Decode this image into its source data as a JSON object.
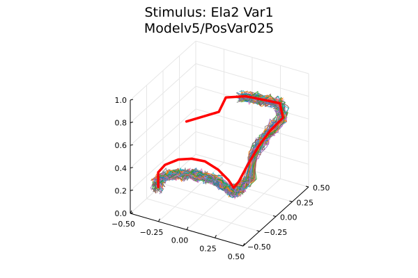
{
  "chart_data": {
    "type": "line",
    "projection": "3d",
    "title_lines": [
      "Stimulus: Ela2 Var1",
      "Modelv5/PosVar025"
    ],
    "xlabel": "",
    "ylabel": "",
    "zlabel": "",
    "xlim": [
      -0.5,
      0.5
    ],
    "ylim": [
      -0.5,
      0.5
    ],
    "zlim": [
      0.0,
      1.0
    ],
    "x_ticks": [
      "−0.50",
      "−0.25",
      "0.00",
      "0.25",
      "0.50"
    ],
    "y_ticks": [
      "−0.50",
      "−0.25",
      "0.00",
      "0.25",
      "0.50"
    ],
    "z_ticks": [
      "0.0",
      "0.2",
      "0.4",
      "0.6",
      "0.8",
      "1.0"
    ],
    "grid": true,
    "legend": "none",
    "colors": {
      "stimulus": "#ff0000",
      "trials": [
        "#1f77b4",
        "#ff7f0e",
        "#2ca02c",
        "#9467bd",
        "#8c564b",
        "#17becf",
        "#e377c2",
        "#7f7f7f"
      ],
      "grid": "#e6e6e6",
      "axis": "#000000"
    },
    "n_trials": 60,
    "stimulus_path": [
      [
        -0.45,
        -0.16,
        0.07
      ],
      [
        -0.45,
        -0.16,
        0.2
      ],
      [
        -0.4,
        -0.14,
        0.27
      ],
      [
        -0.3,
        -0.11,
        0.33
      ],
      [
        -0.2,
        -0.08,
        0.35
      ],
      [
        -0.1,
        -0.05,
        0.34
      ],
      [
        0.0,
        -0.02,
        0.28
      ],
      [
        0.08,
        0.0,
        0.2
      ],
      [
        0.12,
        0.01,
        0.14
      ],
      [
        0.16,
        0.02,
        0.2
      ],
      [
        0.22,
        0.04,
        0.34
      ],
      [
        0.3,
        0.08,
        0.52
      ],
      [
        0.38,
        0.12,
        0.66
      ],
      [
        0.47,
        0.16,
        0.78
      ],
      [
        0.46,
        0.13,
        0.92
      ],
      [
        0.35,
        0.07,
        0.95
      ],
      [
        0.22,
        0.02,
        0.97
      ],
      [
        0.08,
        -0.04,
        0.95
      ],
      [
        0.03,
        -0.06,
        0.82
      ],
      [
        -0.2,
        -0.16,
        0.72
      ]
    ]
  }
}
